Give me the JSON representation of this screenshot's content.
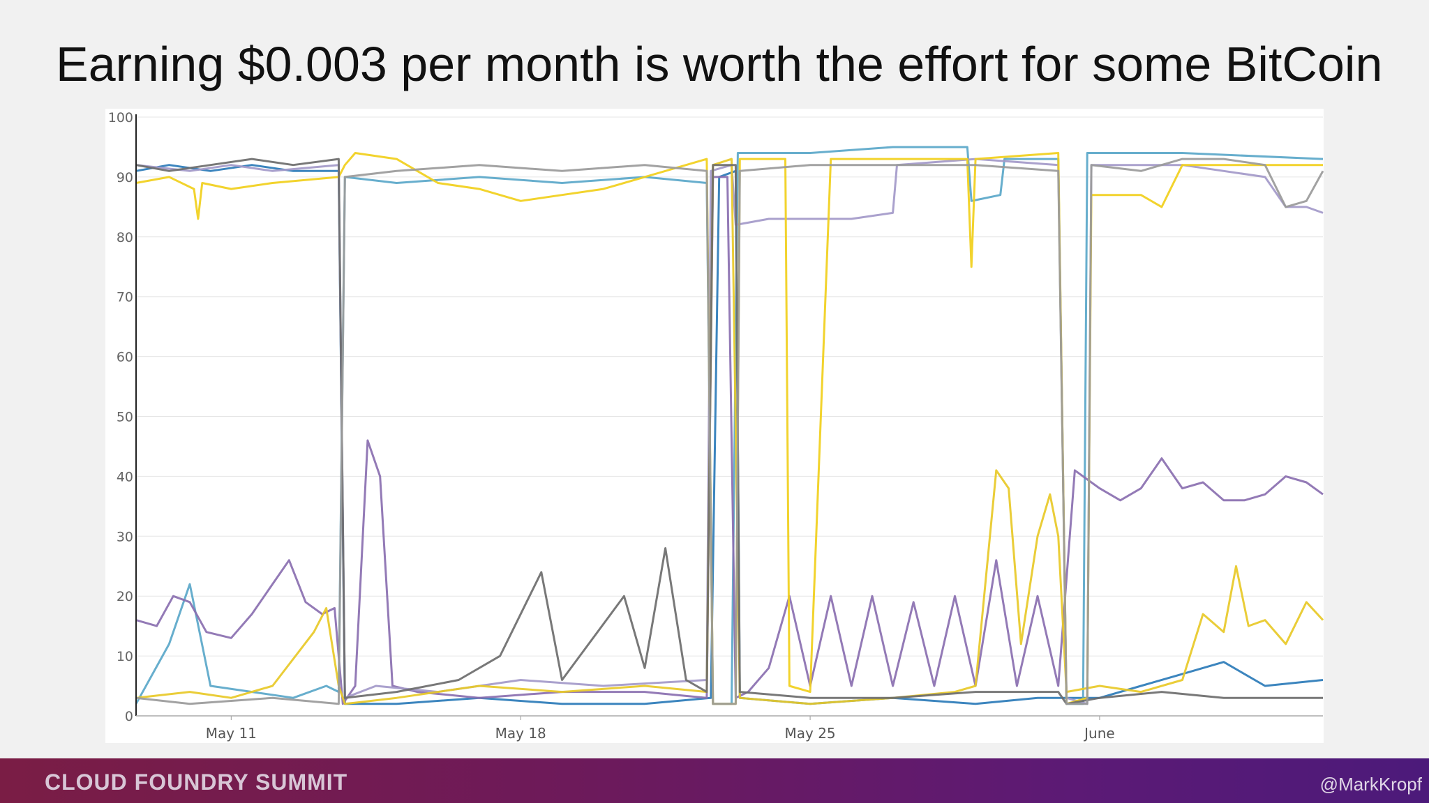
{
  "slide": {
    "title": "Earning $0.003 per month is worth the effort for some BitCoin"
  },
  "footer": {
    "brand": "CLOUD FOUNDRY SUMMIT",
    "handle": "@MarkKropf"
  },
  "chart_data": {
    "type": "line",
    "title": "",
    "xlabel": "",
    "ylabel": "",
    "ylim": [
      0,
      100
    ],
    "xlim": [
      7.7,
      36.4
    ],
    "y_ticks": [
      0,
      10,
      20,
      30,
      40,
      50,
      60,
      70,
      80,
      90,
      100
    ],
    "x_ticks": [
      {
        "value": 10,
        "label": "May 11"
      },
      {
        "value": 17,
        "label": "May 18"
      },
      {
        "value": 24,
        "label": "May 25"
      },
      {
        "value": 31,
        "label": "June"
      }
    ],
    "x_unit_note_hidden": "",
    "grid": true,
    "legend": "none",
    "series": [
      {
        "color": "#2b7bb9",
        "points": [
          [
            7.7,
            91
          ],
          [
            8.5,
            92
          ],
          [
            9.5,
            91
          ],
          [
            10.5,
            92
          ],
          [
            11.5,
            91
          ],
          [
            12.6,
            91
          ],
          [
            12.75,
            2
          ],
          [
            14,
            2
          ],
          [
            16,
            3
          ],
          [
            18,
            2
          ],
          [
            20,
            2
          ],
          [
            21.6,
            3
          ],
          [
            21.8,
            90
          ],
          [
            22.2,
            91
          ],
          [
            22.3,
            3
          ],
          [
            24,
            2
          ],
          [
            26,
            3
          ],
          [
            28,
            2
          ],
          [
            29.5,
            3
          ],
          [
            30,
            3
          ],
          [
            31,
            3
          ],
          [
            32,
            5
          ],
          [
            33,
            7
          ],
          [
            34,
            9
          ],
          [
            35,
            5
          ],
          [
            36.4,
            6
          ]
        ]
      },
      {
        "color": "#5aa7c9",
        "points": [
          [
            7.7,
            2
          ],
          [
            8.5,
            12
          ],
          [
            9,
            22
          ],
          [
            9.5,
            5
          ],
          [
            10.5,
            4
          ],
          [
            11.5,
            3
          ],
          [
            12.3,
            5
          ],
          [
            12.6,
            4
          ],
          [
            12.75,
            90
          ],
          [
            14,
            89
          ],
          [
            16,
            90
          ],
          [
            18,
            89
          ],
          [
            20,
            90
          ],
          [
            21.5,
            89
          ],
          [
            21.65,
            2
          ],
          [
            22.1,
            2
          ],
          [
            22.25,
            94
          ],
          [
            24,
            94
          ],
          [
            26,
            95
          ],
          [
            27.8,
            95
          ],
          [
            27.9,
            86
          ],
          [
            28.6,
            87
          ],
          [
            28.7,
            93
          ],
          [
            30,
            93
          ],
          [
            30.2,
            2
          ],
          [
            30.6,
            2
          ],
          [
            30.7,
            94
          ],
          [
            33,
            94
          ],
          [
            36.4,
            93
          ]
        ]
      },
      {
        "color": "#8a6fb0",
        "points": [
          [
            7.7,
            16
          ],
          [
            8.2,
            15
          ],
          [
            8.6,
            20
          ],
          [
            9,
            19
          ],
          [
            9.4,
            14
          ],
          [
            10,
            13
          ],
          [
            10.5,
            17
          ],
          [
            11,
            22
          ],
          [
            11.4,
            26
          ],
          [
            11.8,
            19
          ],
          [
            12.2,
            17
          ],
          [
            12.5,
            18
          ],
          [
            12.7,
            2
          ],
          [
            13,
            5
          ],
          [
            13.3,
            46
          ],
          [
            13.6,
            40
          ],
          [
            13.9,
            5
          ],
          [
            14.5,
            4
          ],
          [
            16,
            3
          ],
          [
            18,
            4
          ],
          [
            20,
            4
          ],
          [
            21.5,
            3
          ],
          [
            21.65,
            90
          ],
          [
            22.0,
            90
          ],
          [
            22.2,
            3
          ],
          [
            22.5,
            4
          ],
          [
            23,
            8
          ],
          [
            23.5,
            20
          ],
          [
            24,
            5
          ],
          [
            24.5,
            20
          ],
          [
            25,
            5
          ],
          [
            25.5,
            20
          ],
          [
            26,
            5
          ],
          [
            26.5,
            19
          ],
          [
            27,
            5
          ],
          [
            27.5,
            20
          ],
          [
            28,
            5
          ],
          [
            28.5,
            26
          ],
          [
            29,
            5
          ],
          [
            29.5,
            20
          ],
          [
            30,
            5
          ],
          [
            30.4,
            41
          ],
          [
            31,
            38
          ],
          [
            31.5,
            36
          ],
          [
            32,
            38
          ],
          [
            32.5,
            43
          ],
          [
            33,
            38
          ],
          [
            33.5,
            39
          ],
          [
            34,
            36
          ],
          [
            34.5,
            36
          ],
          [
            35,
            37
          ],
          [
            35.5,
            40
          ],
          [
            36,
            39
          ],
          [
            36.4,
            37
          ]
        ]
      },
      {
        "color": "#a399c9",
        "points": [
          [
            7.7,
            92
          ],
          [
            9,
            91
          ],
          [
            10,
            92
          ],
          [
            11,
            91
          ],
          [
            12.6,
            92
          ],
          [
            12.75,
            3
          ],
          [
            13.5,
            5
          ],
          [
            15,
            4
          ],
          [
            17,
            6
          ],
          [
            19,
            5
          ],
          [
            21.5,
            6
          ],
          [
            21.6,
            91
          ],
          [
            22.1,
            92
          ],
          [
            22.2,
            82
          ],
          [
            23,
            83
          ],
          [
            25,
            83
          ],
          [
            26,
            84
          ],
          [
            26.1,
            92
          ],
          [
            28,
            93
          ],
          [
            30,
            92
          ],
          [
            30.2,
            3
          ],
          [
            30.7,
            2
          ],
          [
            30.8,
            92
          ],
          [
            33,
            92
          ],
          [
            35,
            90
          ],
          [
            35.5,
            85
          ],
          [
            36,
            85
          ],
          [
            36.4,
            84
          ]
        ]
      },
      {
        "color": "#f1cf1b",
        "points": [
          [
            7.7,
            89
          ],
          [
            8.5,
            90
          ],
          [
            9.1,
            88
          ],
          [
            9.2,
            83
          ],
          [
            9.3,
            89
          ],
          [
            10,
            88
          ],
          [
            11,
            89
          ],
          [
            12.6,
            90
          ],
          [
            12.75,
            92
          ],
          [
            13,
            94
          ],
          [
            14,
            93
          ],
          [
            15,
            89
          ],
          [
            16,
            88
          ],
          [
            17,
            86
          ],
          [
            18,
            87
          ],
          [
            19,
            88
          ],
          [
            20,
            90
          ],
          [
            21.5,
            93
          ],
          [
            21.65,
            2
          ],
          [
            22.2,
            2
          ],
          [
            22.3,
            93
          ],
          [
            23.4,
            93
          ],
          [
            23.5,
            5
          ],
          [
            24,
            4
          ],
          [
            24.5,
            93
          ],
          [
            26,
            93
          ],
          [
            27.8,
            93
          ],
          [
            27.9,
            75
          ],
          [
            28,
            93
          ],
          [
            30,
            94
          ],
          [
            30.2,
            2
          ],
          [
            30.7,
            3
          ],
          [
            30.8,
            87
          ],
          [
            32,
            87
          ],
          [
            32.5,
            85
          ],
          [
            33,
            92
          ],
          [
            35,
            92
          ],
          [
            36.4,
            92
          ]
        ]
      },
      {
        "color": "#e8c927",
        "points": [
          [
            7.7,
            3
          ],
          [
            9,
            4
          ],
          [
            10,
            3
          ],
          [
            11,
            5
          ],
          [
            12,
            14
          ],
          [
            12.3,
            18
          ],
          [
            12.6,
            5
          ],
          [
            12.75,
            2
          ],
          [
            14,
            3
          ],
          [
            16,
            5
          ],
          [
            18,
            4
          ],
          [
            20,
            5
          ],
          [
            21.5,
            4
          ],
          [
            21.65,
            92
          ],
          [
            22.1,
            93
          ],
          [
            22.3,
            3
          ],
          [
            24,
            2
          ],
          [
            26,
            3
          ],
          [
            27.5,
            4
          ],
          [
            28,
            5
          ],
          [
            28.5,
            41
          ],
          [
            28.8,
            38
          ],
          [
            29.1,
            12
          ],
          [
            29.5,
            30
          ],
          [
            29.8,
            37
          ],
          [
            30,
            30
          ],
          [
            30.2,
            4
          ],
          [
            31,
            5
          ],
          [
            32,
            4
          ],
          [
            33,
            6
          ],
          [
            33.5,
            17
          ],
          [
            34,
            14
          ],
          [
            34.3,
            25
          ],
          [
            34.6,
            15
          ],
          [
            35,
            16
          ],
          [
            35.5,
            12
          ],
          [
            36,
            19
          ],
          [
            36.4,
            16
          ]
        ]
      },
      {
        "color": "#6d6d6d",
        "points": [
          [
            7.7,
            92
          ],
          [
            8.5,
            91
          ],
          [
            9.5,
            92
          ],
          [
            10.5,
            93
          ],
          [
            11.5,
            92
          ],
          [
            12.6,
            93
          ],
          [
            12.75,
            3
          ],
          [
            14,
            4
          ],
          [
            15.5,
            6
          ],
          [
            16.5,
            10
          ],
          [
            17.5,
            24
          ],
          [
            18,
            6
          ],
          [
            19.5,
            20
          ],
          [
            20,
            8
          ],
          [
            20.5,
            28
          ],
          [
            21,
            6
          ],
          [
            21.5,
            4
          ],
          [
            21.65,
            92
          ],
          [
            22.2,
            92
          ],
          [
            22.3,
            4
          ],
          [
            24,
            3
          ],
          [
            26,
            3
          ],
          [
            28,
            4
          ],
          [
            30,
            4
          ],
          [
            30.2,
            2
          ],
          [
            31,
            3
          ],
          [
            32.5,
            4
          ],
          [
            34,
            3
          ],
          [
            36.4,
            3
          ]
        ]
      },
      {
        "color": "#9a9a9a",
        "points": [
          [
            7.7,
            3
          ],
          [
            9,
            2
          ],
          [
            11,
            3
          ],
          [
            12.6,
            2
          ],
          [
            12.75,
            90
          ],
          [
            14,
            91
          ],
          [
            16,
            92
          ],
          [
            18,
            91
          ],
          [
            20,
            92
          ],
          [
            21.5,
            91
          ],
          [
            21.65,
            2
          ],
          [
            22.2,
            2
          ],
          [
            22.3,
            91
          ],
          [
            24,
            92
          ],
          [
            26,
            92
          ],
          [
            28,
            92
          ],
          [
            30,
            91
          ],
          [
            30.2,
            2
          ],
          [
            30.7,
            2
          ],
          [
            30.8,
            92
          ],
          [
            32,
            91
          ],
          [
            33,
            93
          ],
          [
            34,
            93
          ],
          [
            35,
            92
          ],
          [
            35.5,
            85
          ],
          [
            36,
            86
          ],
          [
            36.4,
            91
          ]
        ]
      }
    ]
  }
}
